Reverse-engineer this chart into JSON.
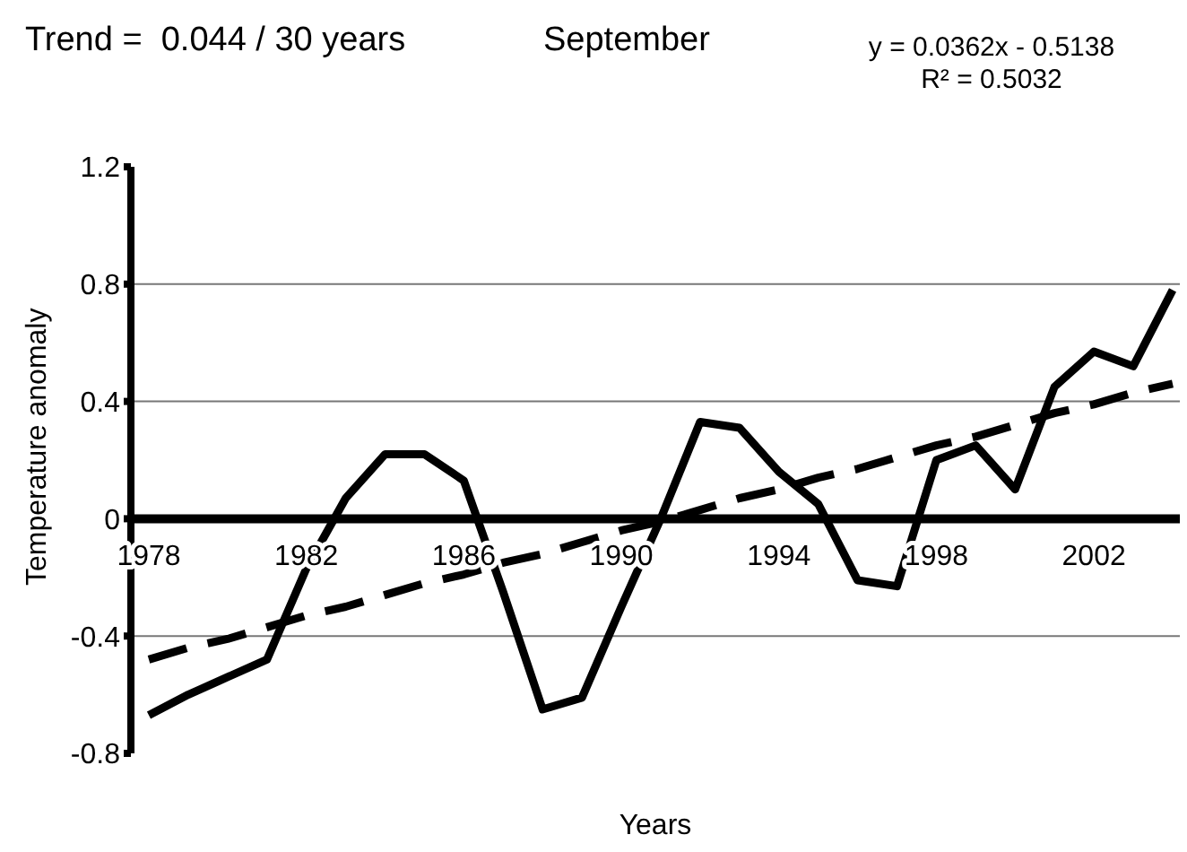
{
  "chart_data": {
    "type": "line",
    "title": "Trend =  0.044 / 30 years",
    "subtitle": "September",
    "xlabel": "Years",
    "ylabel": "Temperature anomaly",
    "annotations": [
      "y = 0.0362x - 0.5138",
      "R² = 0.5032"
    ],
    "categories": [
      "1978",
      null,
      null,
      null,
      "1982",
      null,
      null,
      null,
      "1986",
      null,
      null,
      null,
      "1990",
      null,
      null,
      null,
      "1994",
      null,
      null,
      null,
      "1998",
      null,
      null,
      null,
      "2002",
      null,
      null
    ],
    "series": [
      {
        "color": "#000000",
        "line_style": "solid",
        "values": [
          -0.67,
          -0.6,
          -0.54,
          -0.48,
          -0.17,
          0.07,
          0.22,
          0.22,
          0.13,
          -0.25,
          -0.65,
          -0.61,
          -0.3,
          0.0,
          0.33,
          0.31,
          0.16,
          0.05,
          -0.21,
          -0.23,
          0.2,
          0.25,
          0.1,
          0.45,
          0.57,
          0.52,
          0.78
        ]
      },
      {
        "color": "#000000",
        "line_style": "dashed",
        "values": [
          -0.48,
          -0.44,
          -0.41,
          -0.37,
          -0.33,
          -0.3,
          -0.26,
          -0.22,
          -0.19,
          -0.15,
          -0.12,
          -0.08,
          -0.04,
          -0.01,
          0.03,
          0.07,
          0.1,
          0.14,
          0.17,
          0.21,
          0.25,
          0.28,
          0.32,
          0.36,
          0.39,
          0.43,
          0.46
        ]
      }
    ],
    "ylim": [
      -0.8,
      1.2
    ],
    "yticks": [
      -0.8,
      -0.4,
      0,
      0.4,
      0.8,
      1.2
    ],
    "grid": "y",
    "marker": "none"
  }
}
